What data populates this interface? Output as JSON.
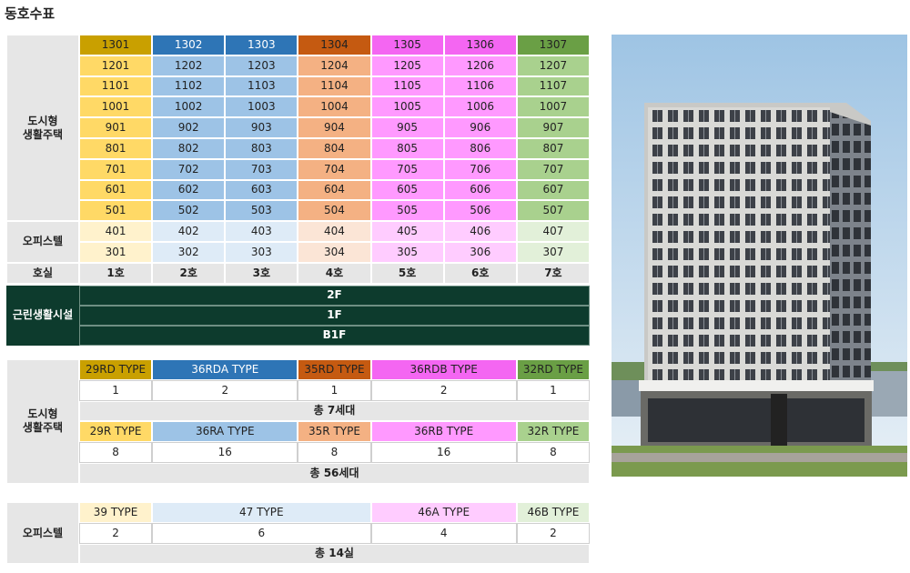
{
  "title": "동호수표",
  "unit_table": {
    "sections": [
      {
        "label": "도시형\n생활주택",
        "rows": [
          [
            "1301",
            "1302",
            "1303",
            "1304",
            "1305",
            "1306",
            "1307"
          ],
          [
            "1201",
            "1202",
            "1203",
            "1204",
            "1205",
            "1206",
            "1207"
          ],
          [
            "1101",
            "1102",
            "1103",
            "1104",
            "1105",
            "1106",
            "1107"
          ],
          [
            "1001",
            "1002",
            "1003",
            "1004",
            "1005",
            "1006",
            "1007"
          ],
          [
            "901",
            "902",
            "903",
            "904",
            "905",
            "906",
            "907"
          ],
          [
            "801",
            "802",
            "803",
            "804",
            "805",
            "806",
            "807"
          ],
          [
            "701",
            "702",
            "703",
            "704",
            "705",
            "706",
            "707"
          ],
          [
            "601",
            "602",
            "603",
            "604",
            "605",
            "606",
            "607"
          ],
          [
            "501",
            "502",
            "503",
            "504",
            "505",
            "506",
            "507"
          ]
        ]
      },
      {
        "label": "오피스텔",
        "rows": [
          [
            "401",
            "402",
            "403",
            "404",
            "405",
            "406",
            "407"
          ],
          [
            "301",
            "302",
            "303",
            "304",
            "305",
            "306",
            "307"
          ]
        ]
      }
    ],
    "footer": {
      "label": "호실",
      "cells": [
        "1호",
        "2호",
        "3호",
        "4호",
        "5호",
        "6호",
        "7호"
      ]
    }
  },
  "commercial": {
    "label": "근린생활시설",
    "floors": [
      "2F",
      "1F",
      "B1F"
    ]
  },
  "summary_tables": [
    {
      "label": "도시형\n생활주택",
      "groups": [
        {
          "types": [
            {
              "name": "29RD TYPE",
              "count": 1
            },
            {
              "name": "36RDA TYPE",
              "count": 2
            },
            {
              "name": "35RD TYPE",
              "count": 1
            },
            {
              "name": "36RDB TYPE",
              "count": 2
            },
            {
              "name": "32RD TYPE",
              "count": 1
            }
          ],
          "total": "총 7세대"
        },
        {
          "types": [
            {
              "name": "29R TYPE",
              "count": 8
            },
            {
              "name": "36RA TYPE",
              "count": 16
            },
            {
              "name": "35R TYPE",
              "count": 8
            },
            {
              "name": "36RB TYPE",
              "count": 16
            },
            {
              "name": "32R TYPE",
              "count": 8
            }
          ],
          "total": "총 56세대"
        }
      ]
    },
    {
      "label": "오피스텔",
      "groups": [
        {
          "types": [
            {
              "name": "39 TYPE",
              "count": 2
            },
            {
              "name": "47 TYPE",
              "count": 6
            },
            {
              "name": "46A TYPE",
              "count": 4
            },
            {
              "name": "46B TYPE",
              "count": 2
            }
          ],
          "total": "총 14실"
        }
      ]
    }
  ]
}
